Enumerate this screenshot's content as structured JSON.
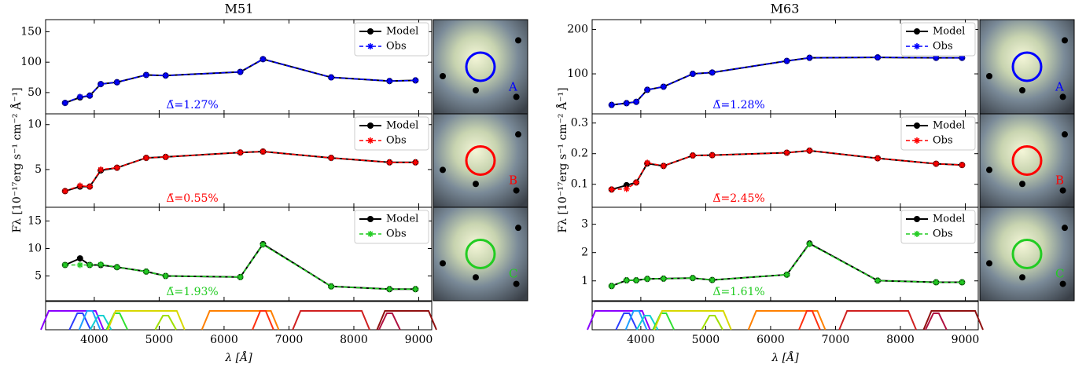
{
  "chart_data": [
    {
      "type": "line",
      "title": "M51",
      "xlabel": "λ [Å]",
      "ylabel": "Fλ [10⁻¹⁷erg s⁻¹ cm⁻² Å⁻¹]",
      "xlim": [
        3250,
        9200
      ],
      "xticks": [
        4000,
        5000,
        6000,
        7000,
        8000,
        9000
      ],
      "x": [
        3550,
        3780,
        3930,
        4100,
        4350,
        4800,
        5100,
        6250,
        6600,
        7650,
        8550,
        8950
      ],
      "filter_colors": [
        "#8a00ff",
        "#2a3cff",
        "#1f9fff",
        "#10d0d0",
        "#30e030",
        "#d8d800",
        "#a0e000",
        "#ff8000",
        "#ff3010",
        "#d02020",
        "#b01040",
        "#901010"
      ],
      "panels": [
        {
          "region": "A",
          "color": "#0000ff",
          "ylim": [
            15,
            170
          ],
          "yticks": [
            50,
            100,
            150
          ],
          "annotation": "Δ̄=1.27%",
          "series": [
            {
              "name": "Model",
              "color": "#000000",
              "values": [
                33,
                42,
                45,
                64,
                67,
                79,
                78,
                84,
                105,
                75,
                69,
                70
              ]
            },
            {
              "name": "Obs",
              "color": "#0000ff",
              "values": [
                33,
                43,
                45,
                64,
                67,
                79,
                78,
                84,
                105,
                75,
                69,
                70
              ]
            }
          ]
        },
        {
          "region": "B",
          "color": "#ff0000",
          "ylim": [
            0.8,
            11.2
          ],
          "yticks": [
            5,
            10
          ],
          "annotation": "Δ̄=0.55%",
          "series": [
            {
              "name": "Model",
              "color": "#000000",
              "values": [
                2.6,
                3.1,
                3.1,
                4.9,
                5.2,
                6.3,
                6.4,
                6.9,
                7.0,
                6.3,
                5.8,
                5.8
              ]
            },
            {
              "name": "Obs",
              "color": "#ff0000",
              "values": [
                2.6,
                3.2,
                3.1,
                5.0,
                5.2,
                6.3,
                6.4,
                6.9,
                7.0,
                6.3,
                5.8,
                5.8
              ]
            }
          ]
        },
        {
          "region": "C",
          "color": "#22cc22",
          "ylim": [
            0.5,
            17.5
          ],
          "yticks": [
            5,
            10,
            15
          ],
          "annotation": "Δ̄=1.93%",
          "series": [
            {
              "name": "Model",
              "color": "#000000",
              "values": [
                7.0,
                8.2,
                7.0,
                7.0,
                6.6,
                5.8,
                5.0,
                4.8,
                10.8,
                3.1,
                2.6,
                2.6
              ]
            },
            {
              "name": "Obs",
              "color": "#22cc22",
              "values": [
                7.0,
                7.0,
                7.0,
                7.1,
                6.6,
                5.8,
                5.0,
                4.8,
                10.7,
                3.1,
                2.6,
                2.6
              ]
            }
          ]
        }
      ]
    },
    {
      "type": "line",
      "title": "M63",
      "xlabel": "λ [Å]",
      "ylabel": "Fλ [10⁻¹⁷erg s⁻¹ cm⁻² Å⁻¹]",
      "xlim": [
        3250,
        9200
      ],
      "xticks": [
        4000,
        5000,
        6000,
        7000,
        8000,
        9000
      ],
      "x": [
        3550,
        3780,
        3930,
        4100,
        4350,
        4800,
        5100,
        6250,
        6600,
        7650,
        8550,
        8950
      ],
      "filter_colors": [
        "#8a00ff",
        "#2a3cff",
        "#1f9fff",
        "#10d0d0",
        "#30e030",
        "#d8d800",
        "#a0e000",
        "#ff8000",
        "#ff3010",
        "#d02020",
        "#b01040",
        "#901010"
      ],
      "panels": [
        {
          "region": "A",
          "color": "#0000ff",
          "ylim": [
            10,
            222
          ],
          "yticks": [
            100,
            200
          ],
          "annotation": "Δ̄=1.28%",
          "series": [
            {
              "name": "Model",
              "color": "#000000",
              "values": [
                30,
                34,
                37,
                64,
                71,
                100,
                103,
                129,
                136,
                137,
                136,
                136
              ]
            },
            {
              "name": "Obs",
              "color": "#0000ff",
              "values": [
                30,
                34,
                37,
                64,
                71,
                100,
                103,
                129,
                136,
                137,
                136,
                136
              ]
            }
          ]
        },
        {
          "region": "B",
          "color": "#ff0000",
          "ylim": [
            0.025,
            0.33
          ],
          "yticks": [
            0.1,
            0.2,
            0.3
          ],
          "annotation": "Δ̄=2.45%",
          "series": [
            {
              "name": "Model",
              "color": "#000000",
              "values": [
                0.083,
                0.097,
                0.106,
                0.168,
                0.16,
                0.194,
                0.195,
                0.203,
                0.21,
                0.185,
                0.167,
                0.163
              ]
            },
            {
              "name": "Obs",
              "color": "#ff0000",
              "values": [
                0.083,
                0.085,
                0.106,
                0.17,
                0.16,
                0.194,
                0.195,
                0.203,
                0.21,
                0.185,
                0.167,
                0.163
              ]
            }
          ]
        },
        {
          "region": "C",
          "color": "#22cc22",
          "ylim": [
            0.3,
            3.6
          ],
          "yticks": [
            1,
            2,
            3
          ],
          "annotation": "Δ̄=1.61%",
          "series": [
            {
              "name": "Model",
              "color": "#000000",
              "values": [
                0.82,
                1.02,
                1.02,
                1.07,
                1.08,
                1.1,
                1.03,
                1.22,
                2.32,
                1.01,
                0.95,
                0.95
              ]
            },
            {
              "name": "Obs",
              "color": "#22cc22",
              "values": [
                0.82,
                1.02,
                1.02,
                1.07,
                1.08,
                1.1,
                1.03,
                1.22,
                2.3,
                1.01,
                0.95,
                0.95
              ]
            }
          ]
        }
      ]
    }
  ]
}
